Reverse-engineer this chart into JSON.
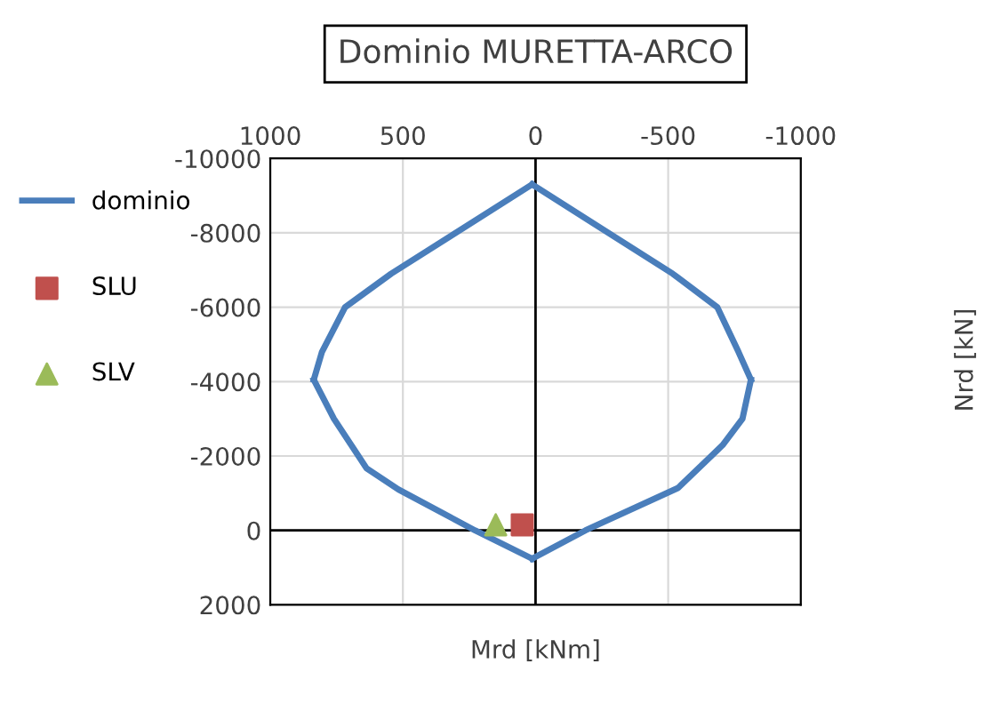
{
  "chart_data": {
    "type": "line",
    "title": "Dominio MURETTA-ARCO",
    "xlabel": "Mrd [kNm]",
    "ylabel": "Nrd [kN]",
    "xlim": [
      1000,
      -1000
    ],
    "xticks": [
      1000,
      500,
      0,
      -500,
      -1000
    ],
    "ylim": [
      2000,
      -10000
    ],
    "yticks": [
      -10000,
      -8000,
      -6000,
      -4000,
      -2000,
      0,
      2000
    ],
    "grid": true,
    "legend": "left",
    "series": [
      {
        "name": "dominio",
        "color": "#4a7ebb",
        "marker": "none",
        "line_style": "solid",
        "x": [
          836,
          805,
          718,
          544,
          13
        ],
        "values": [
          -4050,
          -4800,
          -6000,
          -6900,
          -9300
        ]
      },
      {
        "color": "#4a7ebb",
        "marker": "none",
        "line_style": "solid",
        "x": [
          13,
          228,
          517,
          637,
          760,
          836
        ],
        "values": [
          760,
          0,
          -1100,
          -1670,
          -3000,
          -4050
        ]
      },
      {
        "color": "#4a7ebb",
        "marker": "none",
        "line_style": "solid",
        "x": [
          13,
          -517,
          -685,
          -765,
          -812
        ],
        "values": [
          -9300,
          -6900,
          -6000,
          -4800,
          -4050
        ]
      },
      {
        "color": "#4a7ebb",
        "marker": "none",
        "line_style": "solid",
        "x": [
          13,
          -188,
          -537,
          -705,
          -780,
          -812
        ],
        "values": [
          760,
          0,
          -1140,
          -2290,
          -3000,
          -4050
        ]
      },
      {
        "name": "SLU",
        "type": "scatter",
        "color": "#c0504d",
        "marker": "square",
        "x": [
          50
        ],
        "values": [
          -150
        ]
      },
      {
        "name": "SLV",
        "type": "scatter",
        "color": "#9bbb59",
        "marker": "triangle",
        "x": [
          150
        ],
        "values": [
          -150
        ]
      }
    ]
  }
}
